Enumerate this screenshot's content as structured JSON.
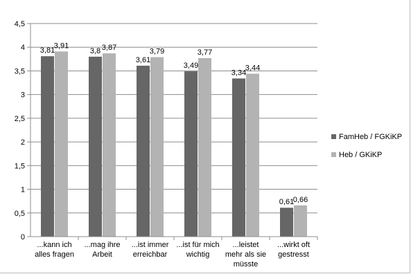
{
  "chart_data": {
    "type": "bar",
    "categories": [
      [
        "...kann ich",
        "alles fragen"
      ],
      [
        "...mag ihre",
        "Arbeit"
      ],
      [
        "...ist immer",
        "erreichbar"
      ],
      [
        "...ist für mich",
        "wichtig"
      ],
      [
        "...leistet",
        "mehr als sie",
        "müsste"
      ],
      [
        "...wirkt oft",
        "gestresst"
      ]
    ],
    "series": [
      {
        "name": "FamHeb / FGKiKP",
        "color": "#666666",
        "values": [
          3.81,
          3.8,
          3.61,
          3.49,
          3.34,
          0.61
        ],
        "labels": [
          "3,81",
          "3,8",
          "3,61",
          "3,49",
          "3,34",
          "0,61"
        ]
      },
      {
        "name": "Heb / GKiKP",
        "color": "#b3b3b3",
        "values": [
          3.91,
          3.87,
          3.79,
          3.77,
          3.44,
          0.66
        ],
        "labels": [
          "3,91",
          "3,87",
          "3,79",
          "3,77",
          "3,44",
          "0,66"
        ]
      }
    ],
    "yticks": [
      0,
      0.5,
      1,
      1.5,
      2,
      2.5,
      3,
      3.5,
      4,
      4.5
    ],
    "ytick_labels": [
      "0",
      "0,5",
      "1",
      "1,5",
      "2",
      "2,5",
      "3",
      "3,5",
      "4",
      "4,5"
    ],
    "ylim": [
      0,
      4.5
    ],
    "grid": true,
    "legend_position": "right"
  }
}
